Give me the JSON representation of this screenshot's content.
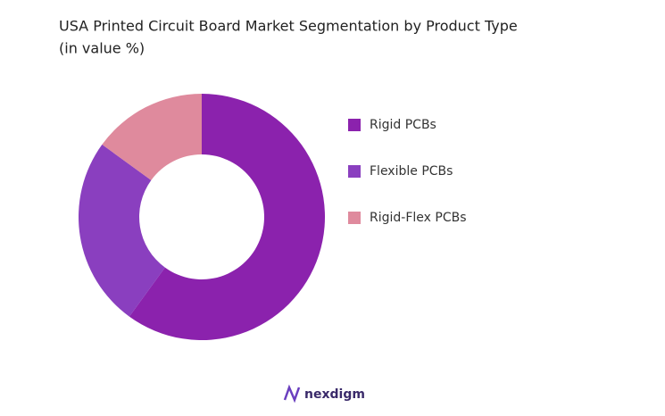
{
  "chart_data": {
    "type": "donut",
    "title": "USA Printed Circuit Board Market Segmentation by Product Type",
    "subtitle": "(in value %)",
    "categories": [
      "Rigid PCBs",
      "Flexible PCBs",
      "Rigid-Flex PCBs"
    ],
    "values": [
      60,
      25,
      15
    ],
    "colors": [
      "#8b22ad",
      "#8a3fbf",
      "#df8a9d"
    ],
    "legend": "right",
    "brand": "nexdigm"
  }
}
